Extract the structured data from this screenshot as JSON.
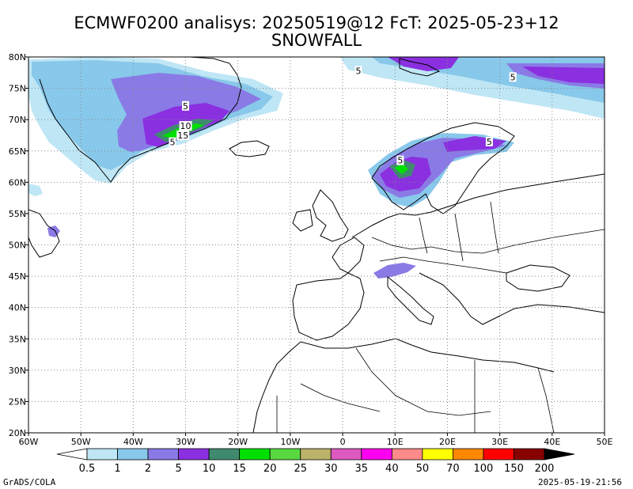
{
  "title": {
    "line1": "ECMWF0200 analisys: 20250519@12 FcT: 2025-05-23+12",
    "line2": "SNOWFALL"
  },
  "map": {
    "lon_range": [
      -60,
      50
    ],
    "lat_range": [
      20,
      80
    ],
    "x_ticks": [
      "60W",
      "50W",
      "40W",
      "30W",
      "20W",
      "10W",
      "0",
      "10E",
      "20E",
      "30E",
      "40E",
      "50E"
    ],
    "y_ticks": [
      "20N",
      "25N",
      "30N",
      "35N",
      "40N",
      "45N",
      "50N",
      "55N",
      "60N",
      "65N",
      "70N",
      "75N",
      "80N"
    ],
    "grid": "dotted",
    "contour_labels": [
      {
        "text": "5",
        "lon": -30.0,
        "lat": 72.2
      },
      {
        "text": "10",
        "lon": -30.0,
        "lat": 69.0
      },
      {
        "text": "15",
        "lon": -30.5,
        "lat": 67.5
      },
      {
        "text": "5",
        "lon": -32.5,
        "lat": 66.4
      },
      {
        "text": "5",
        "lon": 3.0,
        "lat": 77.8
      },
      {
        "text": "5",
        "lon": 32.5,
        "lat": 76.8
      },
      {
        "text": "5",
        "lon": 28.0,
        "lat": 66.5
      },
      {
        "text": "5",
        "lon": 11.0,
        "lat": 63.5
      }
    ]
  },
  "colorbar": {
    "labels": [
      "0.5",
      "1",
      "2",
      "5",
      "10",
      "15",
      "20",
      "25",
      "30",
      "35",
      "40",
      "50",
      "70",
      "100",
      "150",
      "200"
    ],
    "colors": [
      "#ffffff",
      "#bfe6f5",
      "#88c8ea",
      "#8a7ae6",
      "#8a30e0",
      "#3f8a6e",
      "#00e000",
      "#5ad840",
      "#bdb26a",
      "#dc5ac0",
      "#ff00f0",
      "#ff8a8a",
      "#ffff00",
      "#ff8800",
      "#ff0000",
      "#880000",
      "#000000"
    ]
  },
  "footer": {
    "left": "GrADS/COLA",
    "right": "2025-05-19-21:56"
  }
}
